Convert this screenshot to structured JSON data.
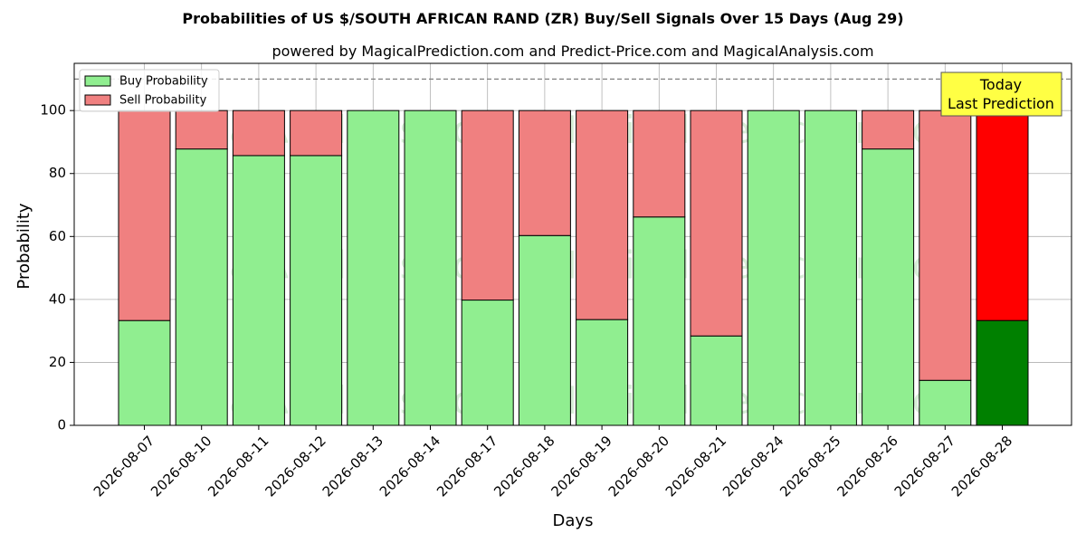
{
  "chart_data": {
    "type": "bar",
    "stacked": true,
    "title": "Probabilities of US $/SOUTH AFRICAN RAND (ZR) Buy/Sell Signals Over 15 Days (Aug 29)",
    "subtitle": "powered by MagicalPrediction.com and Predict-Price.com and MagicalAnalysis.com",
    "xlabel": "Days",
    "ylabel": "Probability",
    "ylim": [
      0,
      115
    ],
    "yticks": [
      0,
      20,
      40,
      60,
      80,
      100
    ],
    "reference_line": 110,
    "grid": true,
    "legend_position": "top-left",
    "categories": [
      "2026-08-07",
      "2026-08-10",
      "2026-08-11",
      "2026-08-12",
      "2026-08-13",
      "2026-08-14",
      "2026-08-17",
      "2026-08-18",
      "2026-08-19",
      "2026-08-20",
      "2026-08-21",
      "2026-08-24",
      "2026-08-25",
      "2026-08-26",
      "2026-08-27",
      "2026-08-28"
    ],
    "series": [
      {
        "name": "Buy Probability",
        "color": "#90ee90",
        "highlight_color": "#008000",
        "values": [
          33.3,
          87.8,
          85.7,
          85.7,
          100,
          100,
          39.8,
          60.3,
          33.6,
          66.2,
          28.4,
          100,
          100,
          87.8,
          14.3,
          33.3
        ]
      },
      {
        "name": "Sell Probability",
        "color": "#f08080",
        "highlight_color": "#ff0000",
        "values": [
          66.7,
          12.2,
          14.3,
          14.3,
          0,
          0,
          60.2,
          39.7,
          66.4,
          33.8,
          71.6,
          0,
          0,
          12.2,
          85.7,
          66.7
        ]
      }
    ],
    "highlight_last": true,
    "annotation": {
      "line1": "Today",
      "line2": "Last Prediction",
      "bg_color": "#ffff44"
    },
    "watermarks": [
      "MagicalAnalysis.com",
      "MagicalPrediction.com"
    ]
  }
}
